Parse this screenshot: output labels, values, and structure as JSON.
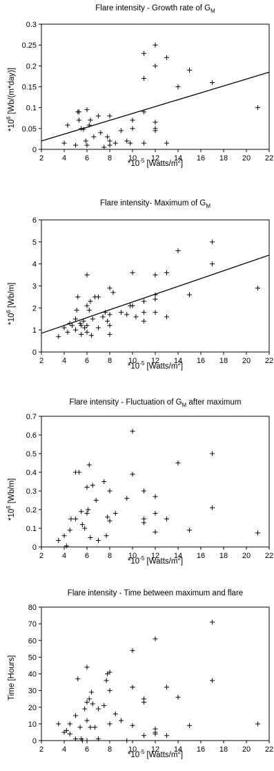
{
  "chart_data": [
    {
      "type": "scatter",
      "title_pre": "Flare intensity -  Growth rate of G",
      "title_sub": "M",
      "title_post": "",
      "xlabel_pre": "*10",
      "xlabel_sup1": "-5",
      "xlabel_mid": " [Watts/m",
      "xlabel_sup2": "2",
      "xlabel_post": "]",
      "ylabel_pre": "*10",
      "ylabel_sup": "6",
      "ylabel_post": " [Wb/(m*day)]",
      "xlim": [
        2,
        22
      ],
      "ylim": [
        0,
        0.3
      ],
      "xticks": [
        2,
        4,
        6,
        8,
        10,
        12,
        14,
        16,
        18,
        20,
        22
      ],
      "yticks": [
        0,
        0.05,
        0.1,
        0.15,
        0.2,
        0.25,
        0.3
      ],
      "ytick_labels": [
        "0",
        "0.05",
        "0.1",
        "0.15",
        "0.2",
        "0.25",
        "0.3"
      ],
      "points": [
        [
          4,
          0.015
        ],
        [
          4.3,
          0.058
        ],
        [
          5,
          0.01
        ],
        [
          5.2,
          0.09
        ],
        [
          5.3,
          0.09
        ],
        [
          5.3,
          0.07
        ],
        [
          5.5,
          0.05
        ],
        [
          5.7,
          0.048
        ],
        [
          5.9,
          0.02
        ],
        [
          6,
          0.01
        ],
        [
          6,
          0.095
        ],
        [
          6.2,
          0.058
        ],
        [
          6.3,
          0.07
        ],
        [
          6.6,
          0.03
        ],
        [
          7,
          0.08
        ],
        [
          7.2,
          0.04
        ],
        [
          7.5,
          0.005
        ],
        [
          7.8,
          0.03
        ],
        [
          8,
          0.02
        ],
        [
          8,
          0.08
        ],
        [
          8,
          0.01
        ],
        [
          8.5,
          0.015
        ],
        [
          9,
          0.045
        ],
        [
          9.5,
          0.02
        ],
        [
          9.8,
          0.015
        ],
        [
          10,
          0.07
        ],
        [
          10,
          0.05
        ],
        [
          11,
          0.23
        ],
        [
          11,
          0.17
        ],
        [
          11,
          0.09
        ],
        [
          11,
          0.015
        ],
        [
          12,
          0.25
        ],
        [
          12,
          0.2
        ],
        [
          12,
          0.065
        ],
        [
          12,
          0.045
        ],
        [
          12,
          0.05
        ],
        [
          13,
          0.22
        ],
        [
          13,
          0.015
        ],
        [
          14,
          0.15
        ],
        [
          15,
          0.19
        ],
        [
          17,
          0.16
        ],
        [
          21,
          0.1
        ]
      ],
      "trend": [
        [
          2,
          0.02
        ],
        [
          22,
          0.185
        ]
      ]
    },
    {
      "type": "scatter",
      "title_pre": "Flare intensity- Maximum of G",
      "title_sub": "M",
      "title_post": "",
      "xlabel_pre": "*10",
      "xlabel_sup1": "-5",
      "xlabel_mid": " [Watts/m",
      "xlabel_sup2": "2",
      "xlabel_post": "]",
      "ylabel_pre": "*10",
      "ylabel_sup": "6",
      "ylabel_post": " [Wb/m]",
      "xlim": [
        2,
        22
      ],
      "ylim": [
        0,
        6
      ],
      "xticks": [
        2,
        4,
        6,
        8,
        10,
        12,
        14,
        16,
        18,
        20,
        22
      ],
      "yticks": [
        0,
        1,
        2,
        3,
        4,
        5,
        6
      ],
      "ytick_labels": [
        "0",
        "1",
        "2",
        "3",
        "4",
        "5",
        "6"
      ],
      "points": [
        [
          3.5,
          0.7
        ],
        [
          4,
          1.1
        ],
        [
          4.3,
          0.9
        ],
        [
          4.5,
          1.3
        ],
        [
          4.7,
          1.2
        ],
        [
          5,
          1.0
        ],
        [
          5,
          1.5
        ],
        [
          5.1,
          1.9
        ],
        [
          5.2,
          2.5
        ],
        [
          5.4,
          1.3
        ],
        [
          5.5,
          1.2
        ],
        [
          5.5,
          0.8
        ],
        [
          5.7,
          1.4
        ],
        [
          5.8,
          1.1
        ],
        [
          6,
          3.5
        ],
        [
          6,
          2.1
        ],
        [
          6,
          1.2
        ],
        [
          6,
          0.9
        ],
        [
          6.2,
          1.9
        ],
        [
          6.3,
          2.3
        ],
        [
          6.4,
          0.75
        ],
        [
          6.5,
          1.5
        ],
        [
          6.7,
          2.5
        ],
        [
          7,
          1.1
        ],
        [
          7,
          2.5
        ],
        [
          7.4,
          1.6
        ],
        [
          7.6,
          1.8
        ],
        [
          7.8,
          1.4
        ],
        [
          8,
          2.9
        ],
        [
          8,
          1.7
        ],
        [
          8,
          1.2
        ],
        [
          8,
          0.8
        ],
        [
          8.3,
          2.7
        ],
        [
          9,
          1.8
        ],
        [
          9.5,
          1.7
        ],
        [
          9.8,
          2.1
        ],
        [
          10,
          3.6
        ],
        [
          10,
          2.1
        ],
        [
          10.3,
          1.6
        ],
        [
          11,
          2.3
        ],
        [
          11,
          1.8
        ],
        [
          11,
          1.4
        ],
        [
          12,
          3.5
        ],
        [
          12,
          2.6
        ],
        [
          12,
          2.4
        ],
        [
          12,
          1.8
        ],
        [
          13,
          3.6
        ],
        [
          13,
          1.6
        ],
        [
          14,
          4.6
        ],
        [
          15,
          2.6
        ],
        [
          17,
          5
        ],
        [
          17,
          4
        ],
        [
          21,
          2.9
        ]
      ],
      "trend": [
        [
          2,
          0.85
        ],
        [
          22,
          4.4
        ]
      ]
    },
    {
      "type": "scatter",
      "title_pre": "Flare intensity - Fluctuation of G",
      "title_sub": "M",
      "title_post": " after maximum",
      "xlabel_pre": "*10",
      "xlabel_sup1": "-5",
      "xlabel_mid": " [Watts/m",
      "xlabel_sup2": "2",
      "xlabel_post": "]",
      "ylabel_pre": "*10",
      "ylabel_sup": "6",
      "ylabel_post": " [Wb/m]",
      "xlim": [
        2,
        22
      ],
      "ylim": [
        0,
        0.7
      ],
      "xticks": [
        2,
        4,
        6,
        8,
        10,
        12,
        14,
        16,
        18,
        20,
        22
      ],
      "yticks": [
        0,
        0.1,
        0.2,
        0.3,
        0.4,
        0.5,
        0.6,
        0.7
      ],
      "ytick_labels": [
        "0",
        "0.1",
        "0.2",
        "0.3",
        "0.4",
        "0.5",
        "0.6",
        "0.7"
      ],
      "points": [
        [
          3.5,
          0.035
        ],
        [
          4,
          0.06
        ],
        [
          4.2,
          0.005
        ],
        [
          4.5,
          0.09
        ],
        [
          4.6,
          0.15
        ],
        [
          5,
          0.4
        ],
        [
          5,
          0.15
        ],
        [
          5.3,
          0.4
        ],
        [
          5.5,
          0.19
        ],
        [
          5.6,
          0.12
        ],
        [
          5.8,
          0.1
        ],
        [
          6,
          0.32
        ],
        [
          6,
          0.18
        ],
        [
          6.1,
          0.2
        ],
        [
          6.2,
          0.44
        ],
        [
          6.3,
          0.05
        ],
        [
          6.5,
          0.33
        ],
        [
          6.8,
          0.25
        ],
        [
          7,
          0.035
        ],
        [
          7.5,
          0.35
        ],
        [
          7.7,
          0.06
        ],
        [
          7.8,
          0.16
        ],
        [
          8,
          0.3
        ],
        [
          8,
          0.14
        ],
        [
          8.5,
          0.18
        ],
        [
          9.5,
          0.26
        ],
        [
          10,
          0.62
        ],
        [
          10,
          0.39
        ],
        [
          11,
          0.3
        ],
        [
          11,
          0.15
        ],
        [
          11,
          0.13
        ],
        [
          12,
          0.27
        ],
        [
          12,
          0.18
        ],
        [
          12,
          0.08
        ],
        [
          13,
          0.15
        ],
        [
          14,
          0.45
        ],
        [
          15,
          0.09
        ],
        [
          17,
          0.5
        ],
        [
          17,
          0.21
        ],
        [
          21,
          0.075
        ]
      ]
    },
    {
      "type": "scatter",
      "title_pre": "Flare intensity - Time between maximum and flare",
      "title_sub": "",
      "title_post": "",
      "xlabel_pre": "*10",
      "xlabel_sup1": "-5",
      "xlabel_mid": " [Watts/m",
      "xlabel_sup2": "2",
      "xlabel_post": "]",
      "ylabel_pre": "Time [Hours]",
      "ylabel_sup": "",
      "ylabel_post": "",
      "xlim": [
        2,
        22
      ],
      "ylim": [
        0,
        80
      ],
      "xticks": [
        2,
        4,
        6,
        8,
        10,
        12,
        14,
        16,
        18,
        20,
        22
      ],
      "yticks": [
        0,
        10,
        20,
        30,
        40,
        50,
        60,
        70,
        80
      ],
      "ytick_labels": [
        "0",
        "10",
        "20",
        "30",
        "40",
        "50",
        "60",
        "70",
        "80"
      ],
      "points": [
        [
          3.5,
          10
        ],
        [
          4,
          5
        ],
        [
          4.2,
          6
        ],
        [
          4.5,
          10
        ],
        [
          4.5,
          4
        ],
        [
          5,
          15
        ],
        [
          5,
          1
        ],
        [
          5.2,
          37
        ],
        [
          5.4,
          8
        ],
        [
          5.5,
          1
        ],
        [
          5.6,
          0
        ],
        [
          5.8,
          19
        ],
        [
          6,
          12
        ],
        [
          6,
          23
        ],
        [
          6,
          44
        ],
        [
          6,
          0
        ],
        [
          6.2,
          25
        ],
        [
          6.3,
          8
        ],
        [
          6.4,
          29
        ],
        [
          6.5,
          22
        ],
        [
          6.7,
          8
        ],
        [
          7,
          19
        ],
        [
          7,
          1
        ],
        [
          7.5,
          21
        ],
        [
          7.7,
          36
        ],
        [
          7.8,
          40
        ],
        [
          8,
          41
        ],
        [
          8,
          30
        ],
        [
          8,
          10
        ],
        [
          8.5,
          16
        ],
        [
          9,
          12
        ],
        [
          9.5,
          0
        ],
        [
          10,
          32
        ],
        [
          10,
          54
        ],
        [
          10,
          9
        ],
        [
          11,
          25
        ],
        [
          11,
          23
        ],
        [
          11,
          3
        ],
        [
          12,
          61
        ],
        [
          12,
          7
        ],
        [
          12,
          5
        ],
        [
          12,
          4
        ],
        [
          13,
          32
        ],
        [
          13,
          3
        ],
        [
          14,
          26
        ],
        [
          15,
          9
        ],
        [
          17,
          71
        ],
        [
          17,
          36
        ],
        [
          21,
          10
        ]
      ]
    }
  ]
}
